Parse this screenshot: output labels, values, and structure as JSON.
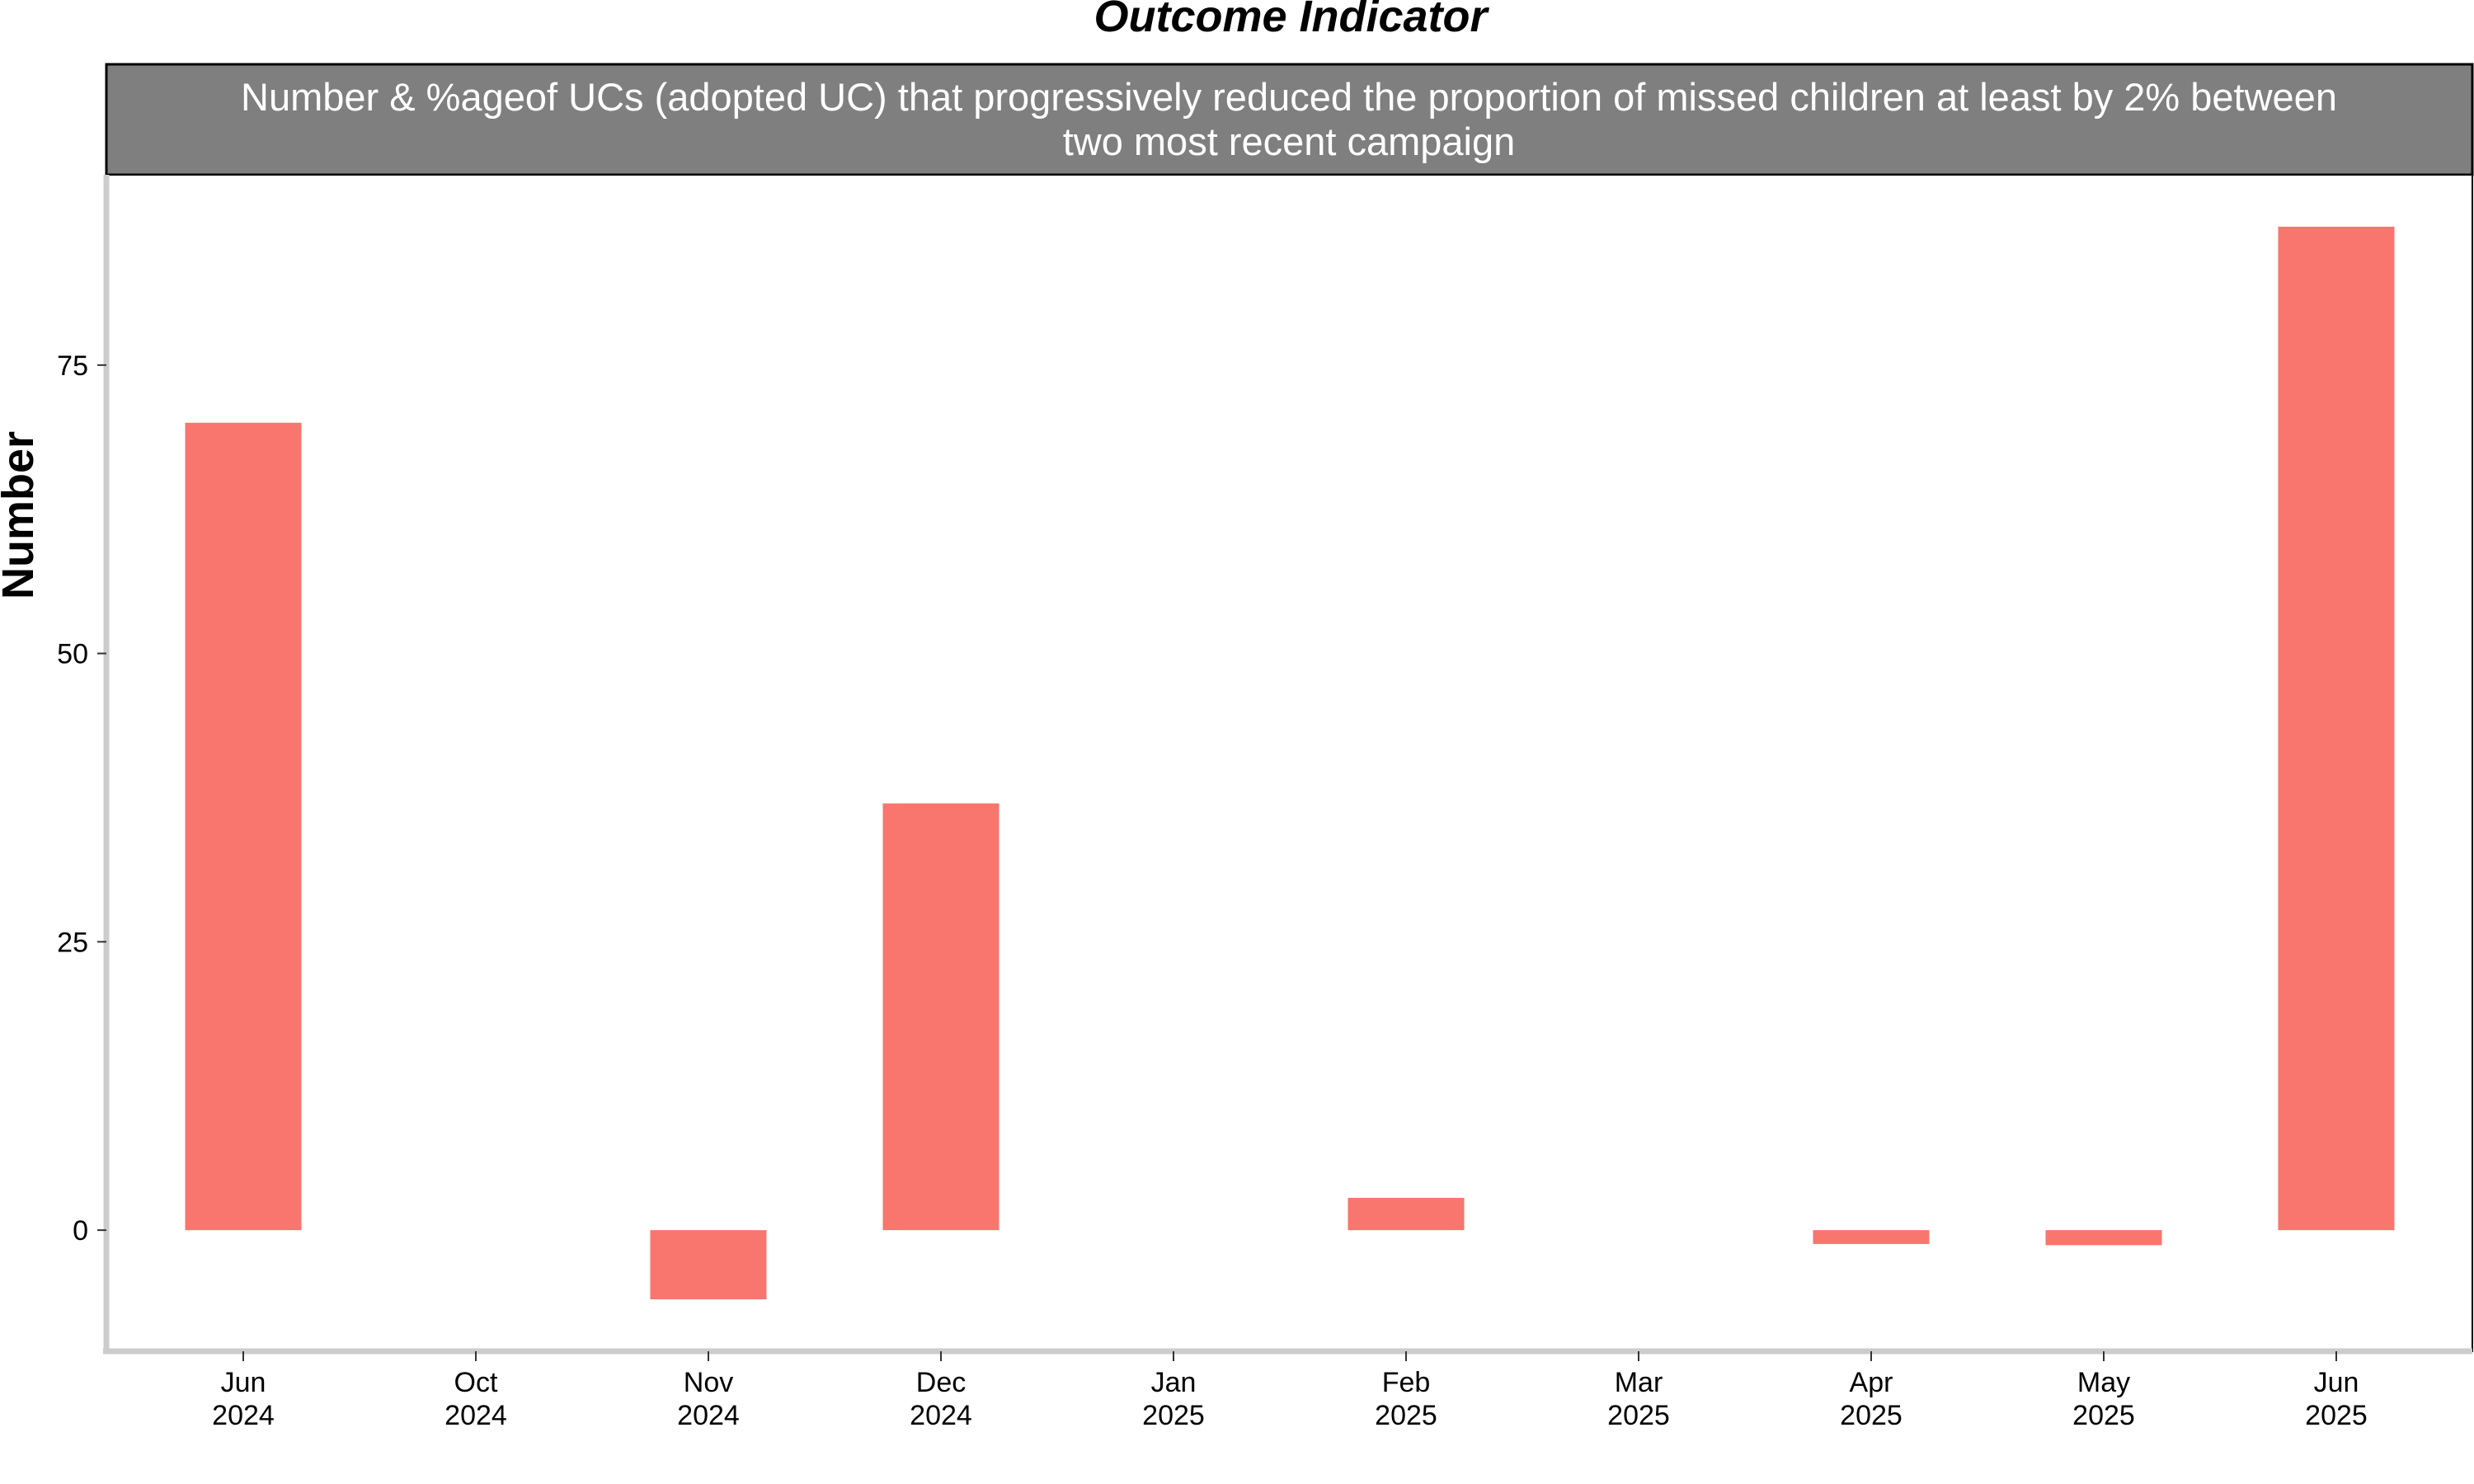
{
  "chart_data": {
    "type": "bar",
    "title": "Outcome Indicator",
    "subtitle_lines": [
      "Number & %ageof UCs (adopted UC) that progressively reduced the proportion of missed children at least by 2% between",
      "two most recent campaign"
    ],
    "xlabel": "",
    "ylabel": "Number",
    "x_dates": [
      "2024-06",
      "2024-10",
      "2024-11",
      "2024-12",
      "2025-01",
      "2025-02",
      "2025-03",
      "2025-04",
      "2025-05",
      "2025-06"
    ],
    "categories": [
      [
        "Jun",
        "2024"
      ],
      [
        "Oct",
        "2024"
      ],
      [
        "Nov",
        "2024"
      ],
      [
        "Dec",
        "2024"
      ],
      [
        "Jan",
        "2025"
      ],
      [
        "Feb",
        "2025"
      ],
      [
        "Mar",
        "2025"
      ],
      [
        "Apr",
        "2025"
      ],
      [
        "May",
        "2025"
      ],
      [
        "Jun",
        "2025"
      ]
    ],
    "values": [
      70,
      null,
      -6,
      37,
      null,
      2.8,
      null,
      -1.2,
      -1.3,
      87
    ],
    "ylim": [
      -10.5,
      91.5
    ],
    "yticks": [
      0,
      25,
      50,
      75
    ],
    "grid": false,
    "legend": "none",
    "bar_color": "#F8766D",
    "strip_color": "#7F7F7F",
    "axis_color": "#CCCCCC"
  }
}
